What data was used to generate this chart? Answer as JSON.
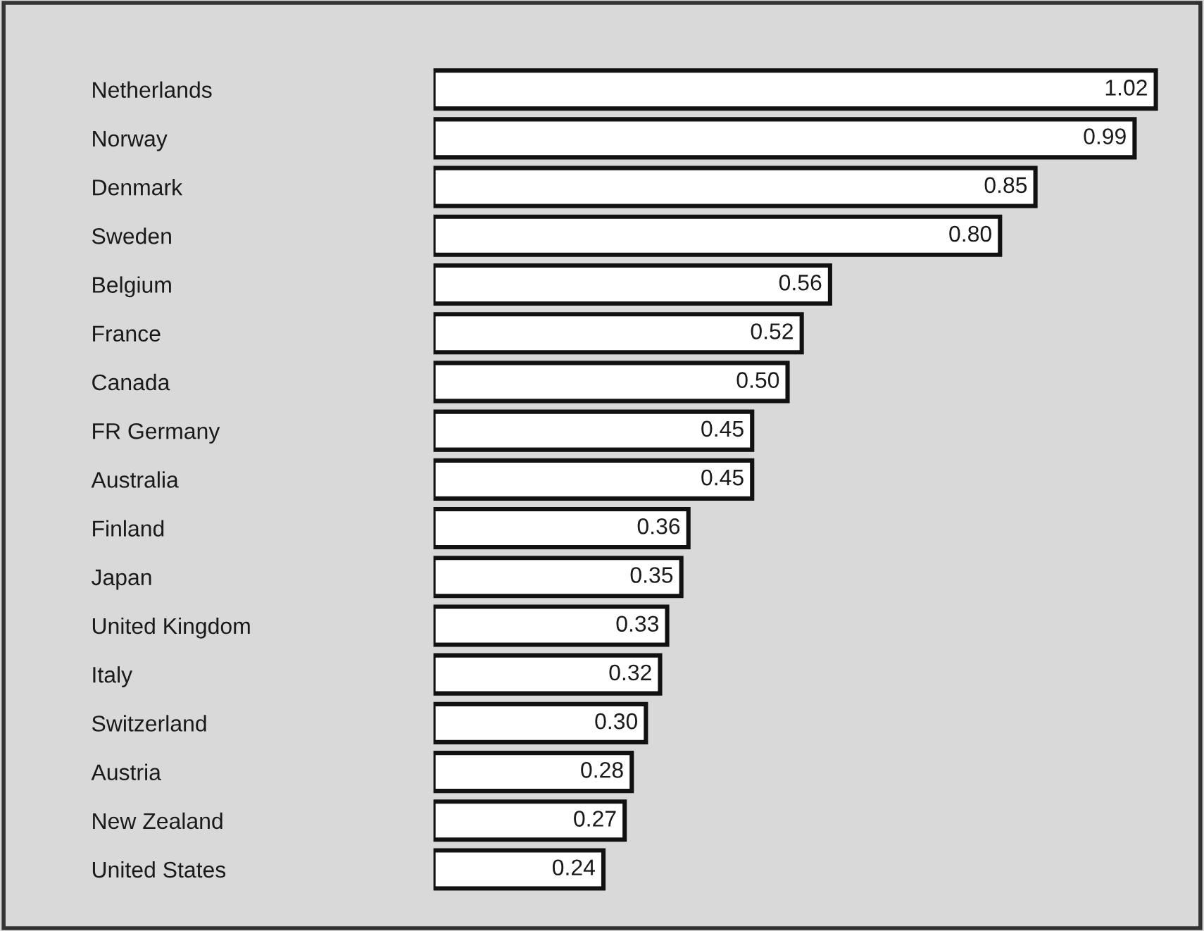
{
  "chart_data": {
    "type": "bar",
    "orientation": "horizontal",
    "categories": [
      "Netherlands",
      "Norway",
      "Denmark",
      "Sweden",
      "Belgium",
      "France",
      "Canada",
      "FR Germany",
      "Australia",
      "Finland",
      "Japan",
      "United Kingdom",
      "Italy",
      "Switzerland",
      "Austria",
      "New Zealand",
      "United States"
    ],
    "values": [
      1.02,
      0.99,
      0.85,
      0.8,
      0.56,
      0.52,
      0.5,
      0.45,
      0.45,
      0.36,
      0.35,
      0.33,
      0.32,
      0.3,
      0.28,
      0.27,
      0.24
    ],
    "value_labels": [
      "1.02",
      "0.99",
      "0.85",
      "0.80",
      "0.56",
      "0.52",
      "0.50",
      "0.45",
      "0.45",
      "0.36",
      "0.35",
      "0.33",
      "0.32",
      "0.30",
      "0.28",
      "0.27",
      "0.24"
    ],
    "color": "#ffffff",
    "tick_labels": "y",
    "grid": false,
    "legend": false
  }
}
